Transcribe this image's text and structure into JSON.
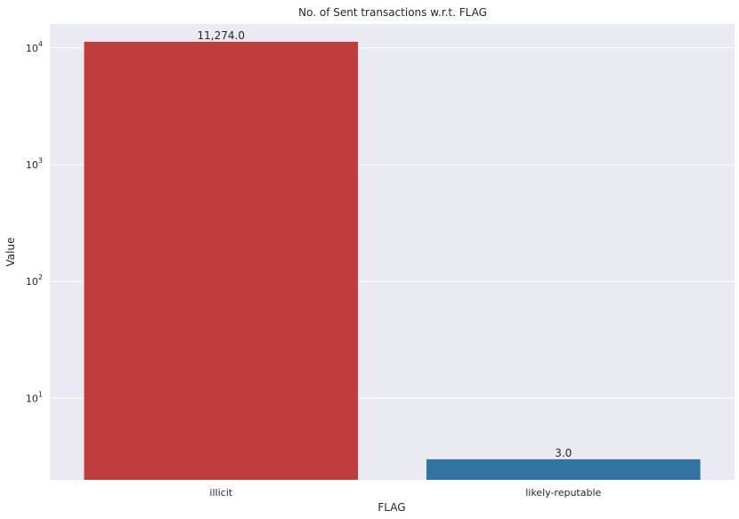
{
  "chart_data": {
    "type": "bar",
    "title": "No. of Sent transactions w.r.t. FLAG",
    "xlabel": "FLAG",
    "ylabel": "Value",
    "categories": [
      "illicit",
      "likely-reputable"
    ],
    "values": [
      11274.0,
      3.0
    ],
    "data_labels": [
      "11,274.0",
      "3.0"
    ],
    "bar_colors": [
      "#c03d3e",
      "#3274a1"
    ],
    "yscale": "log",
    "ylim": [
      2,
      16000
    ],
    "yticks": [
      {
        "value": 10,
        "base": "10",
        "exp": "1"
      },
      {
        "value": 100,
        "base": "10",
        "exp": "2"
      },
      {
        "value": 1000,
        "base": "10",
        "exp": "3"
      },
      {
        "value": 10000,
        "base": "10",
        "exp": "4"
      }
    ],
    "grid": true,
    "background": "#eaeaf2"
  }
}
